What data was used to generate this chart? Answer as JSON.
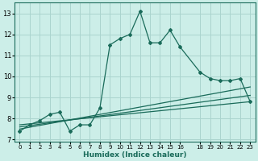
{
  "xlabel": "Humidex (Indice chaleur)",
  "bg_color": "#cceee8",
  "grid_color": "#aad4ce",
  "line_color": "#1a6b5a",
  "xlim": [
    -0.5,
    23.5
  ],
  "ylim": [
    6.9,
    13.5
  ],
  "yticks": [
    7,
    8,
    9,
    10,
    11,
    12,
    13
  ],
  "xticks": [
    0,
    1,
    2,
    3,
    4,
    5,
    6,
    7,
    8,
    9,
    10,
    11,
    12,
    13,
    14,
    15,
    16,
    18,
    19,
    20,
    21,
    22,
    23
  ],
  "main_line_x": [
    0,
    1,
    2,
    3,
    4,
    5,
    6,
    7,
    8,
    9,
    10,
    11,
    12,
    13,
    14,
    15,
    16,
    18,
    19,
    20,
    21,
    22,
    23
  ],
  "main_line_y": [
    7.4,
    7.7,
    7.9,
    8.2,
    8.3,
    7.4,
    7.7,
    7.7,
    8.5,
    11.5,
    11.8,
    12.0,
    13.1,
    11.6,
    11.6,
    12.2,
    11.4,
    10.2,
    9.9,
    9.8,
    9.8,
    9.9,
    8.8
  ],
  "line2_x": [
    0,
    23
  ],
  "line2_y": [
    7.5,
    9.5
  ],
  "line3_x": [
    0,
    23
  ],
  "line3_y": [
    7.6,
    9.1
  ],
  "line4_x": [
    0,
    23
  ],
  "line4_y": [
    7.7,
    8.8
  ]
}
